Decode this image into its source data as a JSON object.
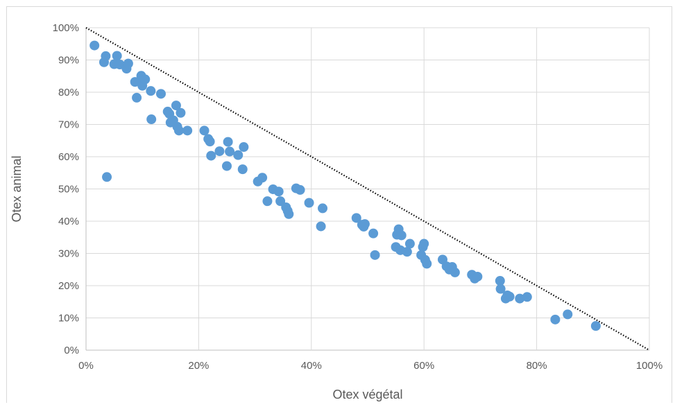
{
  "chart_data": {
    "type": "scatter",
    "title": "",
    "xlabel": "Otex végétal",
    "ylabel": "Otex animal",
    "xlim": [
      0,
      1
    ],
    "ylim": [
      0,
      1
    ],
    "x_ticks": [
      "0%",
      "20%",
      "40%",
      "60%",
      "80%",
      "100%"
    ],
    "y_ticks": [
      "0%",
      "10%",
      "20%",
      "30%",
      "40%",
      "50%",
      "60%",
      "70%",
      "80%",
      "90%",
      "100%"
    ],
    "grid": true,
    "legend": "none",
    "marker_color": "#5b9bd5",
    "reference_line": {
      "style": "dotted",
      "color": "#000000",
      "from": [
        0,
        1
      ],
      "to": [
        1,
        0
      ]
    },
    "series": [
      {
        "points": [
          [
            0.015,
            0.945
          ],
          [
            0.032,
            0.893
          ],
          [
            0.035,
            0.912
          ],
          [
            0.037,
            0.537
          ],
          [
            0.05,
            0.887
          ],
          [
            0.055,
            0.913
          ],
          [
            0.06,
            0.886
          ],
          [
            0.072,
            0.873
          ],
          [
            0.075,
            0.889
          ],
          [
            0.087,
            0.832
          ],
          [
            0.09,
            0.783
          ],
          [
            0.095,
            0.833
          ],
          [
            0.098,
            0.851
          ],
          [
            0.1,
            0.82
          ],
          [
            0.105,
            0.84
          ],
          [
            0.115,
            0.804
          ],
          [
            0.116,
            0.716
          ],
          [
            0.133,
            0.795
          ],
          [
            0.145,
            0.74
          ],
          [
            0.148,
            0.733
          ],
          [
            0.15,
            0.706
          ],
          [
            0.155,
            0.713
          ],
          [
            0.16,
            0.759
          ],
          [
            0.162,
            0.693
          ],
          [
            0.165,
            0.681
          ],
          [
            0.168,
            0.736
          ],
          [
            0.18,
            0.681
          ],
          [
            0.21,
            0.681
          ],
          [
            0.217,
            0.655
          ],
          [
            0.22,
            0.647
          ],
          [
            0.222,
            0.603
          ],
          [
            0.237,
            0.617
          ],
          [
            0.25,
            0.571
          ],
          [
            0.252,
            0.646
          ],
          [
            0.255,
            0.616
          ],
          [
            0.27,
            0.605
          ],
          [
            0.278,
            0.561
          ],
          [
            0.28,
            0.63
          ],
          [
            0.305,
            0.523
          ],
          [
            0.313,
            0.535
          ],
          [
            0.322,
            0.462
          ],
          [
            0.332,
            0.499
          ],
          [
            0.342,
            0.492
          ],
          [
            0.345,
            0.462
          ],
          [
            0.355,
            0.443
          ],
          [
            0.358,
            0.432
          ],
          [
            0.36,
            0.422
          ],
          [
            0.373,
            0.502
          ],
          [
            0.38,
            0.497
          ],
          [
            0.396,
            0.457
          ],
          [
            0.417,
            0.384
          ],
          [
            0.42,
            0.44
          ],
          [
            0.48,
            0.41
          ],
          [
            0.49,
            0.389
          ],
          [
            0.493,
            0.383
          ],
          [
            0.495,
            0.391
          ],
          [
            0.51,
            0.362
          ],
          [
            0.513,
            0.295
          ],
          [
            0.55,
            0.32
          ],
          [
            0.552,
            0.358
          ],
          [
            0.555,
            0.375
          ],
          [
            0.558,
            0.31
          ],
          [
            0.56,
            0.356
          ],
          [
            0.57,
            0.305
          ],
          [
            0.575,
            0.33
          ],
          [
            0.595,
            0.295
          ],
          [
            0.598,
            0.32
          ],
          [
            0.6,
            0.33
          ],
          [
            0.602,
            0.28
          ],
          [
            0.605,
            0.268
          ],
          [
            0.633,
            0.281
          ],
          [
            0.64,
            0.26
          ],
          [
            0.645,
            0.25
          ],
          [
            0.65,
            0.258
          ],
          [
            0.655,
            0.241
          ],
          [
            0.685,
            0.234
          ],
          [
            0.69,
            0.222
          ],
          [
            0.695,
            0.228
          ],
          [
            0.735,
            0.215
          ],
          [
            0.736,
            0.19
          ],
          [
            0.745,
            0.16
          ],
          [
            0.748,
            0.17
          ],
          [
            0.752,
            0.166
          ],
          [
            0.77,
            0.16
          ],
          [
            0.783,
            0.165
          ],
          [
            0.833,
            0.095
          ],
          [
            0.855,
            0.111
          ],
          [
            0.905,
            0.075
          ]
        ]
      }
    ]
  }
}
